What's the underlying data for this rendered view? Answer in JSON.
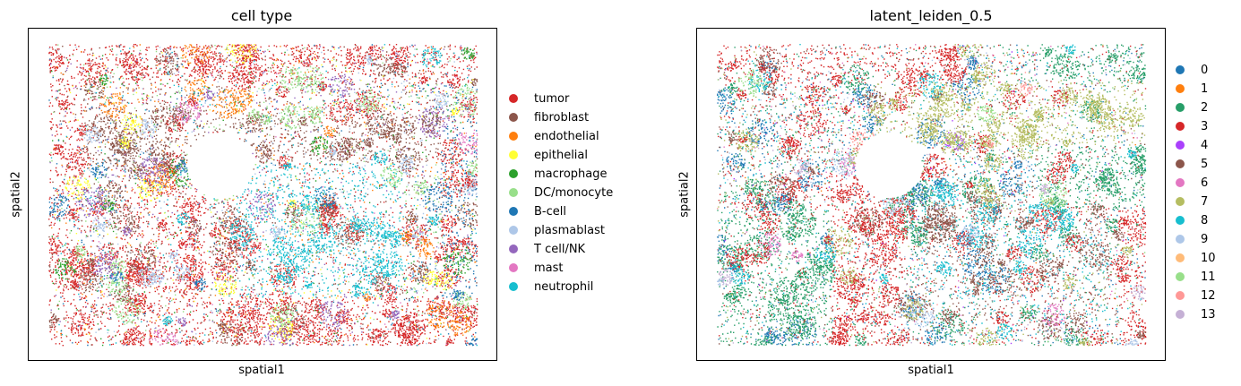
{
  "chart_data": [
    {
      "type": "scatter",
      "title": "cell type",
      "xlabel": "spatial1",
      "ylabel": "spatial2",
      "legend_position": "right",
      "grid": false,
      "categories": [
        {
          "label": "tumor",
          "color": "#d62728"
        },
        {
          "label": "fibroblast",
          "color": "#8c564b"
        },
        {
          "label": "endothelial",
          "color": "#ff7f0e"
        },
        {
          "label": "epithelial",
          "color": "#ffff33"
        },
        {
          "label": "macrophage",
          "color": "#2ca02c"
        },
        {
          "label": "DC/monocyte",
          "color": "#98df8a"
        },
        {
          "label": "B-cell",
          "color": "#1f77b4"
        },
        {
          "label": "plasmablast",
          "color": "#aec7e8"
        },
        {
          "label": "T cell/NK",
          "color": "#9467bd"
        },
        {
          "label": "mast",
          "color": "#e377c2"
        },
        {
          "label": "neutrophil",
          "color": "#17becf"
        }
      ]
    },
    {
      "type": "scatter",
      "title": "latent_leiden_0.5",
      "xlabel": "spatial1",
      "ylabel": "spatial2",
      "legend_position": "right",
      "grid": false,
      "categories": [
        {
          "label": "0",
          "color": "#1f77b4"
        },
        {
          "label": "1",
          "color": "#ff7f0e"
        },
        {
          "label": "2",
          "color": "#279e68"
        },
        {
          "label": "3",
          "color": "#d62728"
        },
        {
          "label": "4",
          "color": "#aa40fc"
        },
        {
          "label": "5",
          "color": "#8c564b"
        },
        {
          "label": "6",
          "color": "#e377c2"
        },
        {
          "label": "7",
          "color": "#b5bd61"
        },
        {
          "label": "8",
          "color": "#17becf"
        },
        {
          "label": "9",
          "color": "#aec7e8"
        },
        {
          "label": "10",
          "color": "#ffbb78"
        },
        {
          "label": "11",
          "color": "#98df8a"
        },
        {
          "label": "12",
          "color": "#ff9896"
        },
        {
          "label": "13",
          "color": "#c5b0d5"
        }
      ]
    }
  ]
}
